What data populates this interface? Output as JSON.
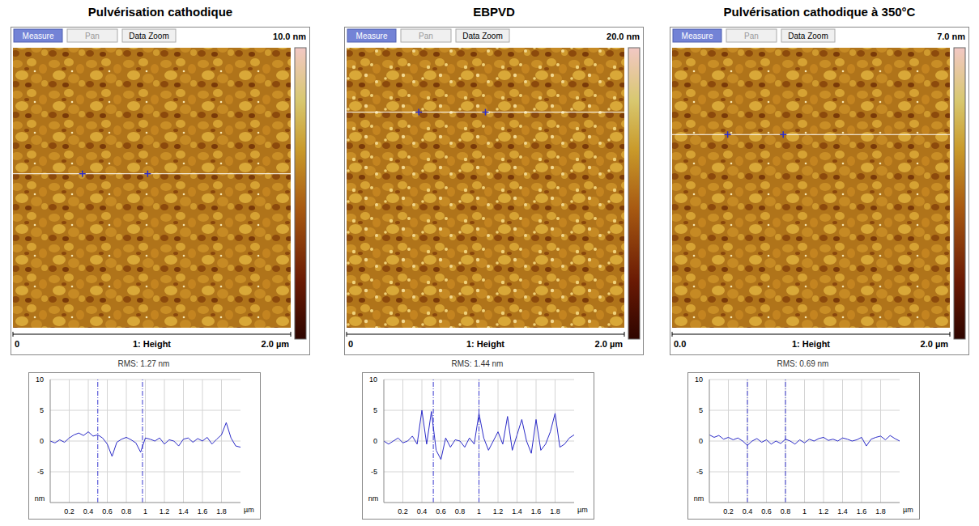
{
  "chart_data": [
    {
      "type": "line",
      "title": "Pulvérisation cathodique",
      "buttons": [
        "Measure",
        "Pan",
        "Data Zoom"
      ],
      "colorbar": {
        "range": [
          0,
          10
        ],
        "label": "10.0 nm"
      },
      "channel": "1: Height",
      "scan_range": [
        0,
        2
      ],
      "scan_ticks": [
        {
          "value": 0,
          "label": "0"
        },
        {
          "value": 2,
          "label": "2.0 µm"
        }
      ],
      "rms": "RMS: 1.27 nm",
      "x": [
        0,
        0.05,
        0.1,
        0.15,
        0.2,
        0.25,
        0.3,
        0.35,
        0.4,
        0.45,
        0.5,
        0.55,
        0.6,
        0.65,
        0.7,
        0.75,
        0.8,
        0.85,
        0.9,
        0.95,
        1.0,
        1.05,
        1.1,
        1.15,
        1.2,
        1.25,
        1.3,
        1.35,
        1.4,
        1.45,
        1.5,
        1.55,
        1.6,
        1.65,
        1.7,
        1.75,
        1.8,
        1.85,
        1.9,
        1.95,
        2.0
      ],
      "values": [
        0,
        -0.3,
        0.2,
        -0.2,
        0.5,
        1.0,
        1.3,
        0.9,
        1.5,
        0.8,
        1.0,
        0.5,
        -0.5,
        -2.5,
        -0.2,
        0.3,
        0.6,
        0.2,
        -0.3,
        -1.8,
        0.5,
        0.3,
        0.0,
        0.5,
        -0.5,
        0.2,
        0.0,
        -0.8,
        0.3,
        0.5,
        -0.2,
        0.4,
        0.0,
        0.6,
        -0.5,
        0.3,
        1.0,
        3.0,
        0.5,
        -0.8,
        -1.0
      ],
      "color": "#2b2bc8",
      "xlim": [
        0,
        2
      ],
      "xticks": [
        0.2,
        0.4,
        0.6,
        0.8,
        1,
        1.2,
        1.4,
        1.6,
        1.8
      ],
      "ylim": [
        -10,
        10
      ],
      "yticks": [
        -5,
        0,
        5,
        10
      ],
      "grid": true,
      "x_label": "µm",
      "y_label": "nm",
      "cursors": [
        0.5,
        0.97
      ]
    },
    {
      "type": "line",
      "title": "EBPVD",
      "buttons": [
        "Measure",
        "Pan",
        "Data Zoom"
      ],
      "colorbar": {
        "range": [
          0,
          20
        ],
        "label": "20.0 nm"
      },
      "channel": "1: Height",
      "scan_range": [
        0,
        2
      ],
      "scan_ticks": [
        {
          "value": 0,
          "label": "0"
        },
        {
          "value": 2,
          "label": "2.0 µm"
        }
      ],
      "rms": "RMS: 1.44 nm",
      "x": [
        0,
        0.05,
        0.1,
        0.15,
        0.2,
        0.25,
        0.3,
        0.35,
        0.4,
        0.45,
        0.5,
        0.55,
        0.6,
        0.65,
        0.7,
        0.75,
        0.8,
        0.85,
        0.9,
        0.95,
        1.0,
        1.05,
        1.1,
        1.15,
        1.2,
        1.25,
        1.3,
        1.35,
        1.4,
        1.45,
        1.5,
        1.55,
        1.6,
        1.65,
        1.7,
        1.75,
        1.8,
        1.85,
        1.9,
        1.95,
        2.0
      ],
      "values": [
        0,
        -0.5,
        0,
        0.5,
        -0.3,
        0,
        0.8,
        -0.5,
        5.0,
        -0.5,
        4.8,
        -1.5,
        -3.0,
        0.5,
        -1.0,
        0.2,
        0,
        -1.0,
        0.5,
        -0.5,
        4.5,
        0.5,
        -1.5,
        0,
        1.5,
        -0.5,
        4.0,
        -1.5,
        1.0,
        3.5,
        0,
        -2.0,
        3.5,
        -1.5,
        -0.5,
        1.5,
        4.5,
        -1.0,
        -0.5,
        0.5,
        1.0
      ],
      "color": "#2b2bc8",
      "xlim": [
        0,
        2
      ],
      "xticks": [
        0.2,
        0.4,
        0.6,
        0.8,
        1,
        1.2,
        1.4,
        1.6,
        1.8
      ],
      "ylim": [
        -10,
        10
      ],
      "yticks": [
        -5,
        0,
        5,
        10
      ],
      "grid": true,
      "x_label": "µm",
      "y_label": "nm",
      "cursors": [
        0.52,
        1.0
      ]
    },
    {
      "type": "line",
      "title": "Pulvérisation cathodique à 350°C",
      "buttons": [
        "Measure",
        "Pan",
        "Data Zoom"
      ],
      "colorbar": {
        "range": [
          0,
          7
        ],
        "label": "7.0 nm"
      },
      "channel": "1: Height",
      "scan_range": [
        0,
        2
      ],
      "scan_ticks": [
        {
          "value": 0,
          "label": "0.0"
        },
        {
          "value": 2,
          "label": "2.0 µm"
        }
      ],
      "rms": "RMS: 0.69 nm",
      "x": [
        0,
        0.05,
        0.1,
        0.15,
        0.2,
        0.25,
        0.3,
        0.35,
        0.4,
        0.45,
        0.5,
        0.55,
        0.6,
        0.65,
        0.7,
        0.75,
        0.8,
        0.85,
        0.9,
        0.95,
        1.0,
        1.05,
        1.1,
        1.15,
        1.2,
        1.25,
        1.3,
        1.35,
        1.4,
        1.45,
        1.5,
        1.55,
        1.6,
        1.65,
        1.7,
        1.75,
        1.8,
        1.85,
        1.9,
        1.95,
        2.0
      ],
      "values": [
        1.0,
        0.6,
        0.9,
        0.3,
        0.6,
        0.2,
        0.5,
        0.0,
        -0.7,
        0.0,
        0.4,
        -0.2,
        0.2,
        -0.5,
        0.0,
        -0.4,
        0.3,
        0.0,
        -0.5,
        0.2,
        -0.3,
        0.3,
        0.0,
        0.4,
        0.6,
        0.1,
        0.3,
        0.0,
        0.5,
        0.3,
        0.0,
        0.2,
        0.6,
        -0.8,
        0.3,
        0.6,
        0.8,
        0.2,
        0.9,
        0.4,
        0.0
      ],
      "color": "#2b2bc8",
      "xlim": [
        0,
        2
      ],
      "xticks": [
        0.2,
        0.4,
        0.6,
        0.8,
        1,
        1.2,
        1.4,
        1.6,
        1.8
      ],
      "ylim": [
        -10,
        10
      ],
      "yticks": [
        -5,
        0,
        5,
        10
      ],
      "grid": true,
      "x_label": "µm",
      "y_label": "nm",
      "cursors": [
        0.4,
        0.8
      ]
    }
  ]
}
